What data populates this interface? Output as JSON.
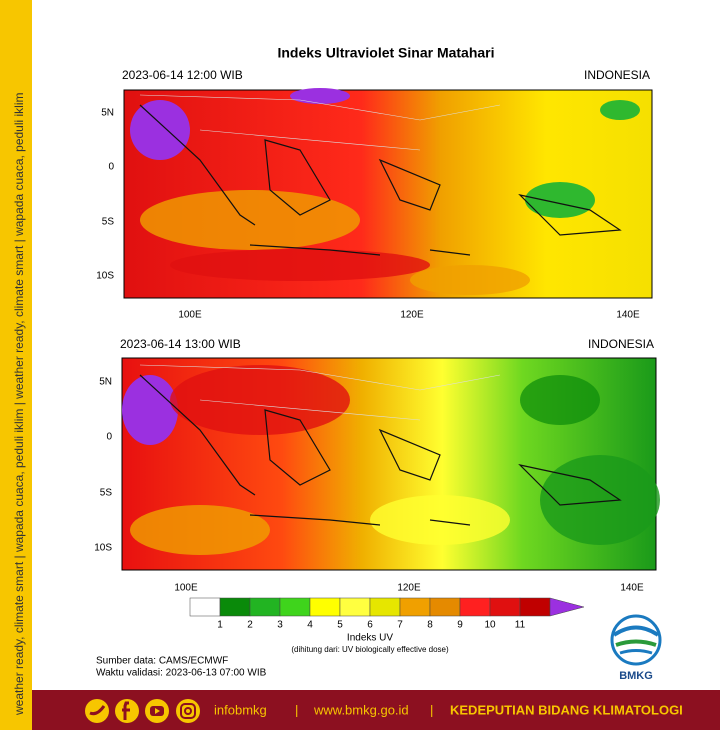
{
  "title": "Indeks Ultraviolet Sinar Matahari",
  "panels": [
    {
      "date": "2023-06-14  12:00 WIB",
      "region": "INDONESIA",
      "y_labels": [
        "5N",
        "0",
        "5S",
        "10S"
      ],
      "x_labels": [
        "100E",
        "120E",
        "140E"
      ]
    },
    {
      "date": "2023-06-14  13:00 WIB",
      "region": "INDONESIA",
      "y_labels": [
        "5N",
        "0",
        "5S",
        "10S"
      ],
      "x_labels": [
        "100E",
        "120E",
        "140E"
      ]
    }
  ],
  "legend": {
    "colors": [
      "#ffffff",
      "#0a8a0a",
      "#22b422",
      "#3fd41c",
      "#ffff00",
      "#ffff40",
      "#e6e600",
      "#f0a000",
      "#e58a00",
      "#ff2020",
      "#e01010",
      "#c00000",
      "#9b30e0"
    ],
    "labels": [
      1,
      2,
      3,
      4,
      5,
      6,
      7,
      8,
      9,
      10,
      11
    ],
    "title": "Indeks UV",
    "note": "(dihitung dari: UV biologically effective dose)"
  },
  "source": "Sumber data: CAMS/ECMWF",
  "valid": "Waktu validasi: 2023-06-13 07:00 WIB",
  "logo": "BMKG",
  "footer": {
    "handle": "infobmkg",
    "separator": "|",
    "website": "www.bmkg.go.id",
    "department": "KEDEPUTIAN BIDANG KLIMATOLOGI"
  },
  "side_text": "weather ready, climate smart  |  wapada cuaca, peduli iklim  |  weather ready, climate smart  |  wapada cuaca, peduli iklim"
}
